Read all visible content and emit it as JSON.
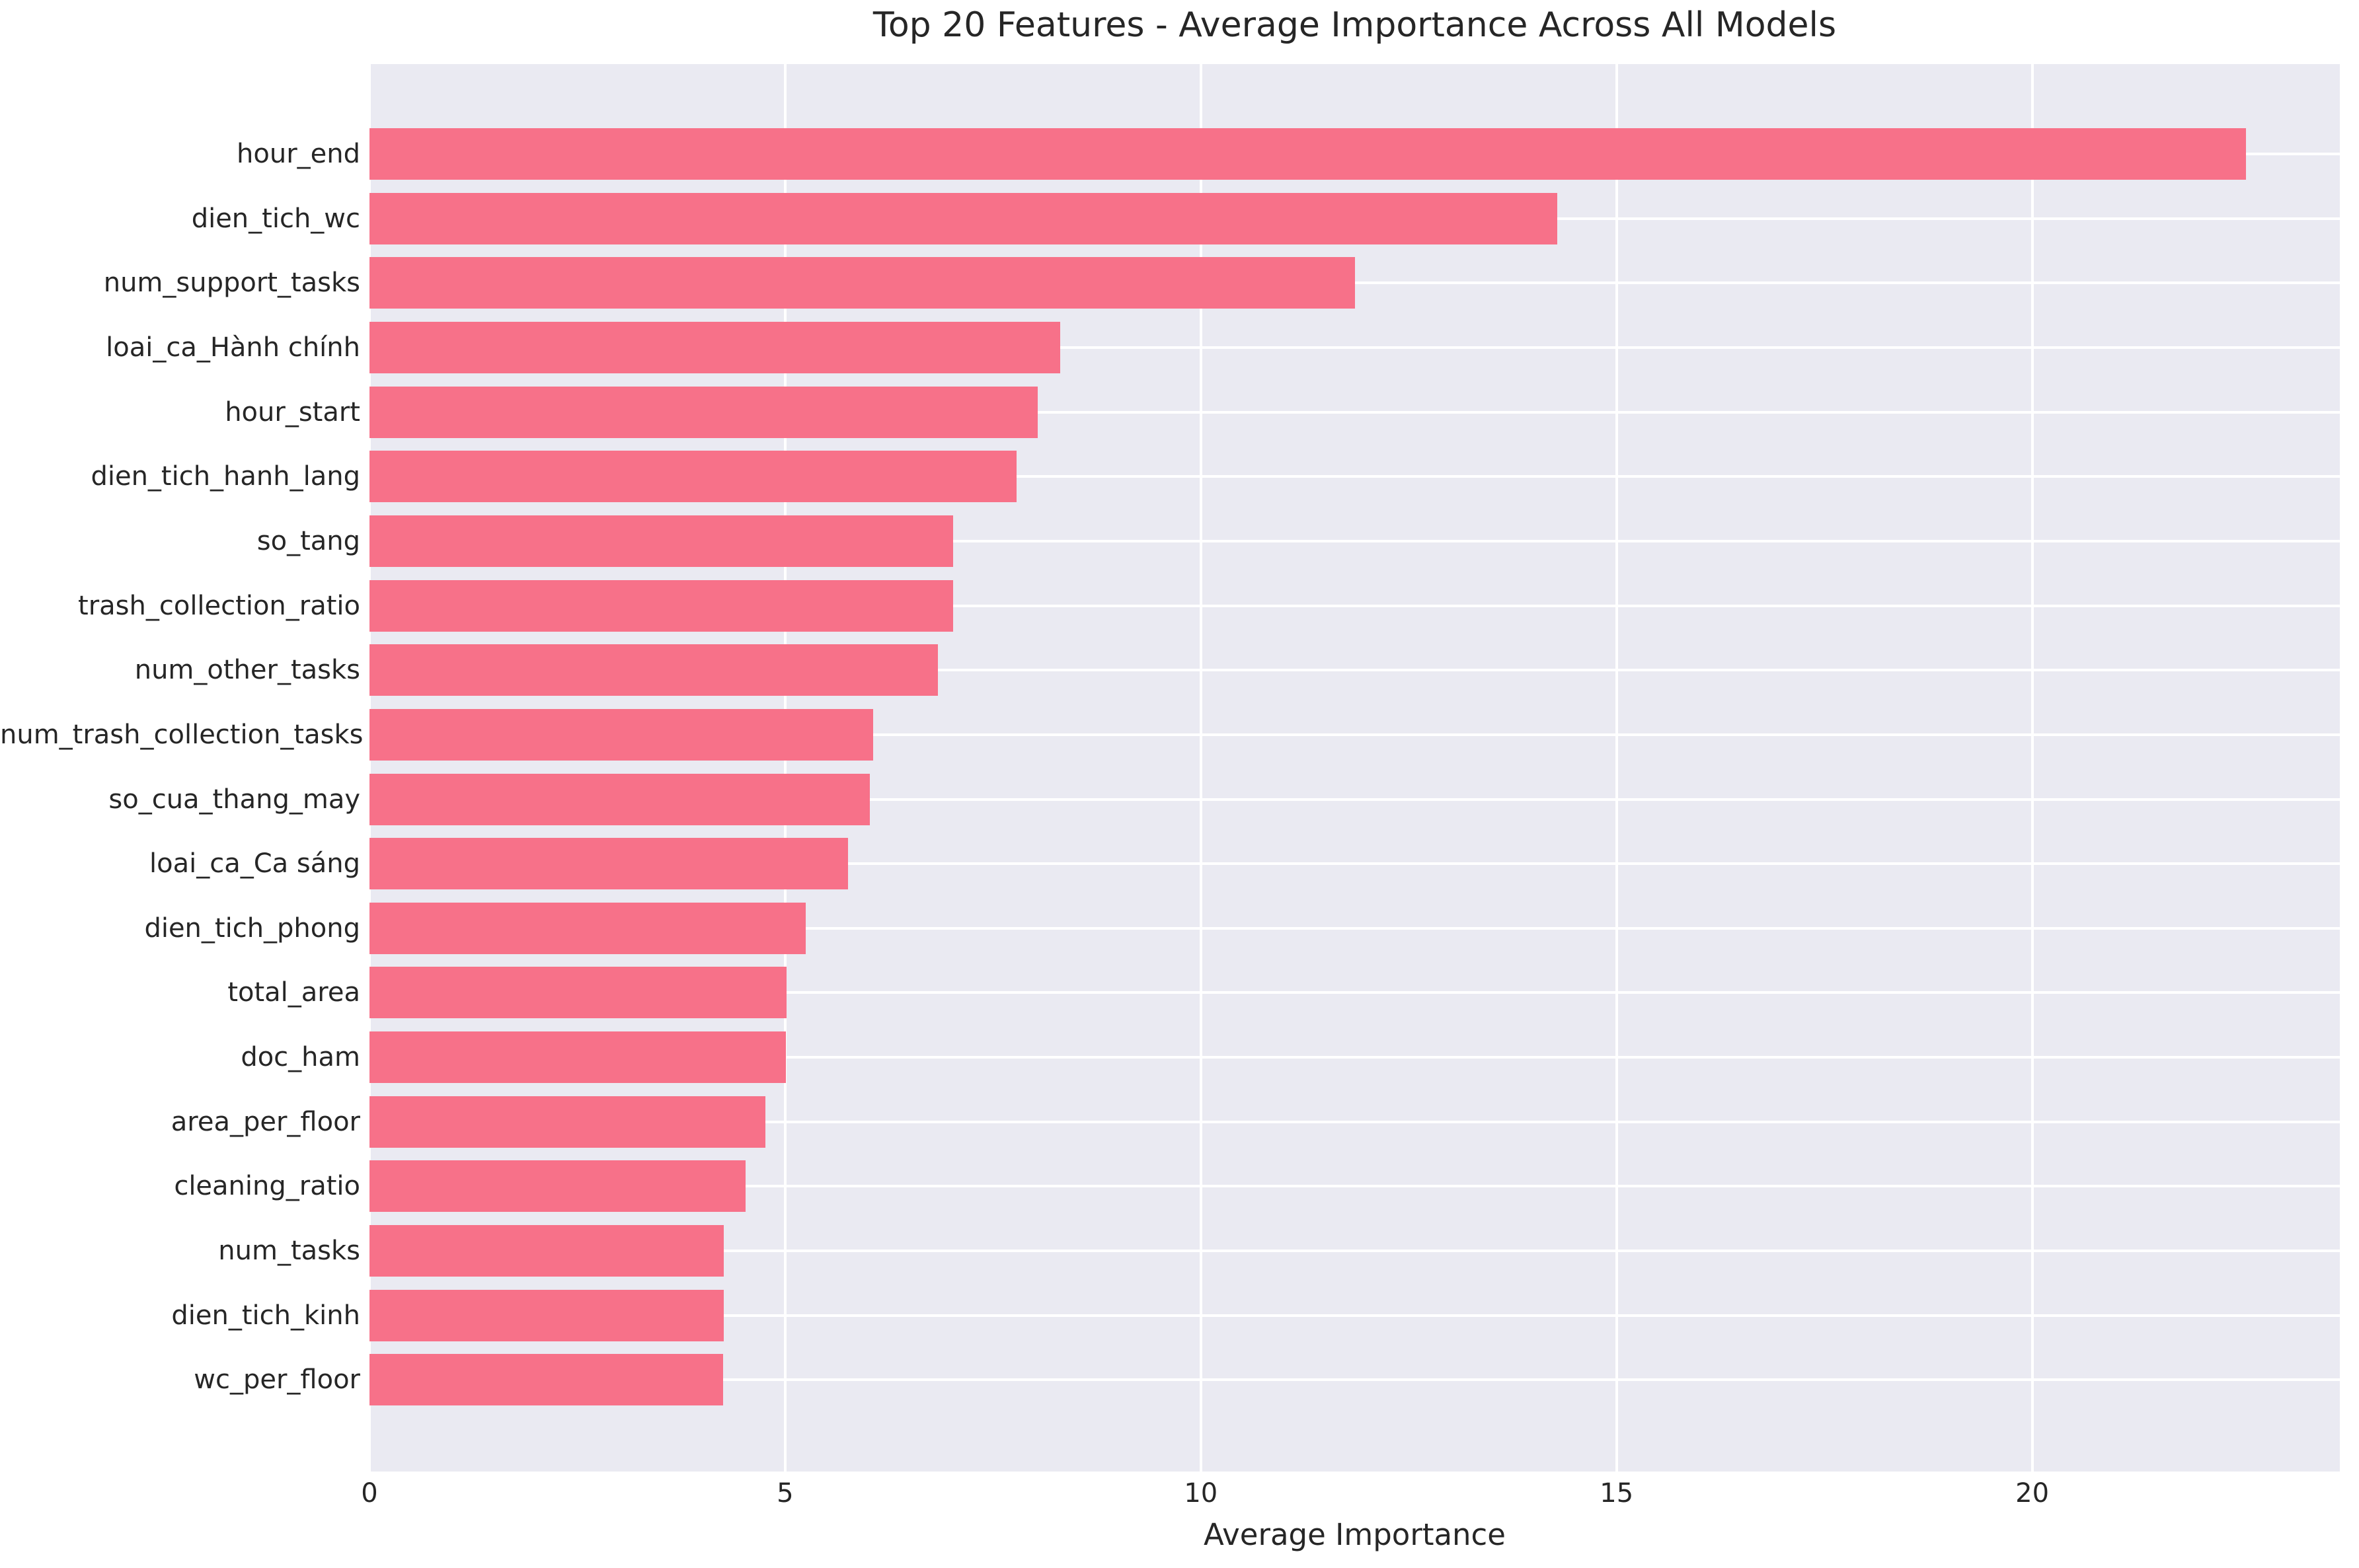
{
  "chart_data": {
    "type": "bar",
    "orientation": "horizontal",
    "title": "Top 20 Features - Average Importance Across All Models",
    "xlabel": "Average Importance",
    "ylabel": "",
    "categories": [
      "hour_end",
      "dien_tich_wc",
      "num_support_tasks",
      "loai_ca_Hành chính",
      "hour_start",
      "dien_tich_hanh_lang",
      "so_tang",
      "trash_collection_ratio",
      "num_other_tasks",
      "num_trash_collection_tasks",
      "so_cua_thang_may",
      "loai_ca_Ca sáng",
      "dien_tich_phong",
      "total_area",
      "doc_ham",
      "area_per_floor",
      "cleaning_ratio",
      "num_tasks",
      "dien_tich_kinh",
      "wc_per_floor"
    ],
    "values": [
      22.57,
      14.29,
      11.85,
      8.31,
      8.04,
      7.78,
      7.02,
      7.02,
      6.84,
      6.06,
      6.02,
      5.76,
      5.25,
      5.02,
      5.01,
      4.76,
      4.52,
      4.26,
      4.26,
      4.25
    ],
    "xlim": [
      0,
      23.7
    ],
    "xticks": [
      0,
      5,
      10,
      15,
      20
    ],
    "grid": true,
    "legend": false,
    "colors": {
      "bar": "#f77189",
      "plot_background": "#eaeaf2",
      "gridline": "#ffffff",
      "text": "#262626",
      "figure_background": "#ffffff"
    }
  }
}
